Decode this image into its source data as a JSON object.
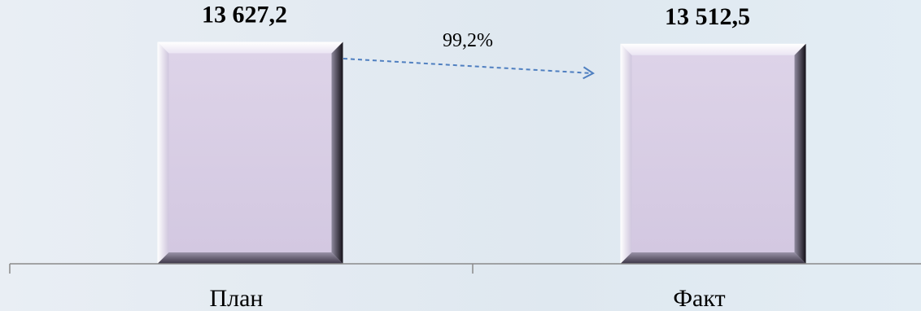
{
  "chart_data": {
    "type": "bar",
    "categories": [
      "План",
      "Факт"
    ],
    "values": [
      13627.2,
      13512.5
    ],
    "value_labels": [
      "13 627,2",
      "13 512,5"
    ],
    "ylim": [
      0,
      16200
    ],
    "grid": false,
    "annotation": {
      "text": "99,2%",
      "style": "dashed-arrow",
      "from": "План",
      "to": "Факт"
    },
    "colors": {
      "bar_face": "#d7cce4",
      "bar_edge_dark": "#2a2438",
      "bar_edge_light": "#f4eff9",
      "axis": "#8a8a8a",
      "arrow": "#4f7fc0"
    }
  }
}
